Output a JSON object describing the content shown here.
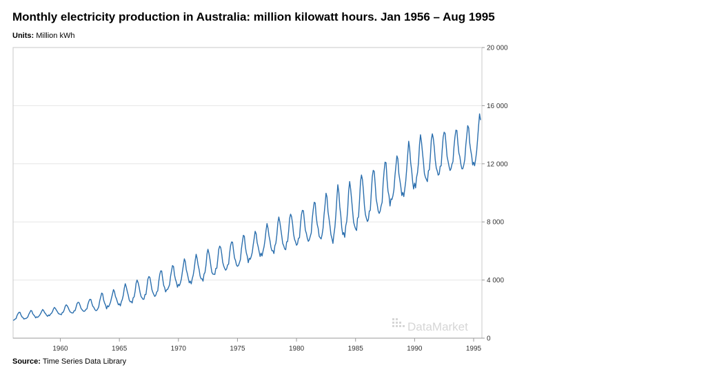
{
  "header": {
    "title": "Monthly electricity production in Australia: million kilowatt hours. Jan 1956 – Aug 1995",
    "units_label": "Units:",
    "units_value": "Million kWh"
  },
  "footer": {
    "source_label": "Source:",
    "source_value": "Time Series Data Library"
  },
  "watermark": "DataMarket",
  "colors": {
    "line": "#2a6ead",
    "grid": "#e6e6e6",
    "frame": "#c8c8c8",
    "watermark": "#d6d6d6"
  },
  "chart_data": {
    "type": "line",
    "title": "Monthly electricity production in Australia: million kilowatt hours. Jan 1956 – Aug 1995",
    "xlabel": "",
    "ylabel": "",
    "start": "1956-01",
    "end": "1995-08",
    "frequency": "monthly",
    "xlim": [
      1956.0,
      1995.7
    ],
    "ylim": [
      0,
      20000
    ],
    "x_ticks": [
      1960,
      1965,
      1970,
      1975,
      1980,
      1985,
      1990,
      1995
    ],
    "y_ticks": [
      0,
      4000,
      8000,
      12000,
      16000,
      20000
    ],
    "y_tick_labels": [
      "0",
      "4 000",
      "8 000",
      "12 000",
      "16 000",
      "20 000"
    ],
    "y_axis_side": "right",
    "grid": "horizontal",
    "series": [
      {
        "annual_mean": {
          "1956": 1500,
          "1957": 1600,
          "1958": 1680,
          "1959": 1820,
          "1960": 1950,
          "1961": 2100,
          "1962": 2250,
          "1963": 2450,
          "1964": 2700,
          "1965": 2950,
          "1966": 3200,
          "1967": 3450,
          "1968": 3750,
          "1969": 4100,
          "1970": 4450,
          "1971": 4700,
          "1972": 5000,
          "1973": 5350,
          "1974": 5650,
          "1975": 5950,
          "1976": 6300,
          "1977": 6700,
          "1978": 7050,
          "1979": 7300,
          "1980": 7600,
          "1981": 7950,
          "1982": 8250,
          "1983": 8400,
          "1984": 8800,
          "1985": 9300,
          "1986": 9800,
          "1987": 10300,
          "1988": 10900,
          "1989": 11500,
          "1990": 12100,
          "1991": 12400,
          "1992": 12700,
          "1993": 12900,
          "1994": 13000,
          "1995": 13500
        },
        "winter_peak": {
          "1956": 1800,
          "1957": 1900,
          "1958": 1950,
          "1959": 2100,
          "1960": 2300,
          "1961": 2500,
          "1962": 2700,
          "1963": 3100,
          "1964": 3300,
          "1965": 3700,
          "1966": 4000,
          "1967": 4300,
          "1968": 4700,
          "1969": 5000,
          "1970": 5400,
          "1971": 5700,
          "1972": 6100,
          "1973": 6400,
          "1974": 6700,
          "1975": 7100,
          "1976": 7300,
          "1977": 7800,
          "1978": 8300,
          "1979": 8600,
          "1980": 8900,
          "1981": 9400,
          "1982": 9900,
          "1983": 10400,
          "1984": 10700,
          "1985": 11300,
          "1986": 11700,
          "1987": 12200,
          "1988": 12500,
          "1989": 13400,
          "1990": 13900,
          "1991": 14100,
          "1992": 14300,
          "1993": 14400,
          "1994": 14600,
          "1995": 15300
        }
      }
    ]
  }
}
